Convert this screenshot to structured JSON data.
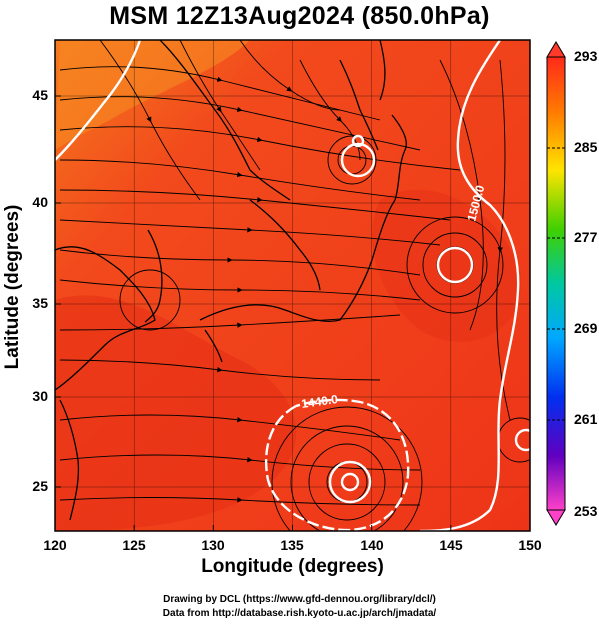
{
  "title": "MSM 12Z13Aug2024 (850.0hPa)",
  "map": {
    "xlabel": "Longitude (degrees)",
    "ylabel": "Latitude  (degrees)",
    "lon_ticks": [
      "120",
      "125",
      "130",
      "135",
      "140",
      "145",
      "150"
    ],
    "lat_ticks": [
      "25",
      "30",
      "35",
      "40",
      "45"
    ],
    "contour_labels": [
      "1500.0",
      "1440.0"
    ],
    "colors": {
      "field": "#f23a1a",
      "field_dark": "#e03018",
      "field_light": "#f7622a",
      "contour": "#ffffff",
      "coast": "#000000"
    }
  },
  "colorbar": {
    "ticks": [
      "293",
      "285",
      "277",
      "269",
      "261",
      "253"
    ],
    "colors": [
      "#ff2020",
      "#ff8a00",
      "#ffe000",
      "#00d000",
      "#00c8ff",
      "#0040ff",
      "#2000c0",
      "#c000c0",
      "#ff40c0"
    ]
  },
  "footer": {
    "line1": "Drawing by DCL (https://www.gfd-dennou.org/library/dcl/)",
    "line2": "Data from http://database.rish.kyoto-u.ac.jp/arch/jmadata/"
  }
}
